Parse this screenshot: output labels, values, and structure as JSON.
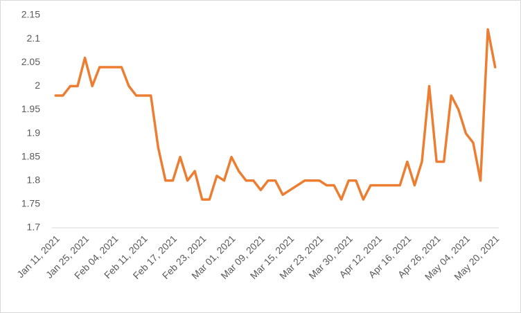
{
  "chart_data": {
    "type": "line",
    "categories": [
      "Jan 11, 2021",
      null,
      null,
      null,
      "Jan 25, 2021",
      null,
      null,
      null,
      "Feb 04, 2021",
      null,
      null,
      null,
      "Feb 11, 2021",
      null,
      null,
      null,
      "Feb 17, 2021",
      null,
      null,
      null,
      "Feb 23, 2021",
      null,
      null,
      null,
      "Mar 01, 2021",
      null,
      null,
      null,
      "Mar 09, 2021",
      null,
      null,
      null,
      "Mar 15, 2021",
      null,
      null,
      null,
      "Mar 23, 2021",
      null,
      null,
      null,
      "Mar 30, 2021",
      null,
      null,
      null,
      "Apr 12, 2021",
      null,
      null,
      null,
      "Apr 16, 2021",
      null,
      null,
      null,
      "Apr 26, 2021",
      null,
      null,
      null,
      "May 04, 2021",
      null,
      null,
      null,
      "May 20, 2021"
    ],
    "values": [
      1.98,
      1.98,
      2.0,
      2.0,
      2.06,
      2.0,
      2.04,
      2.04,
      2.04,
      2.04,
      2.0,
      1.98,
      1.98,
      1.98,
      1.87,
      1.8,
      1.8,
      1.85,
      1.8,
      1.82,
      1.76,
      1.76,
      1.81,
      1.8,
      1.85,
      1.82,
      1.8,
      1.8,
      1.78,
      1.8,
      1.8,
      1.77,
      1.78,
      1.79,
      1.8,
      1.8,
      1.8,
      1.79,
      1.79,
      1.76,
      1.8,
      1.8,
      1.76,
      1.79,
      1.79,
      1.79,
      1.79,
      1.79,
      1.84,
      1.79,
      1.84,
      2.0,
      1.84,
      1.84,
      1.98,
      1.95,
      1.9,
      1.88,
      1.8,
      2.12,
      2.04
    ],
    "color": "#ed7d31",
    "ylim": [
      1.7,
      2.15
    ],
    "yticks": [
      1.7,
      1.75,
      1.8,
      1.85,
      1.9,
      1.95,
      2,
      2.05,
      2.1,
      2.15
    ],
    "grid": false
  }
}
